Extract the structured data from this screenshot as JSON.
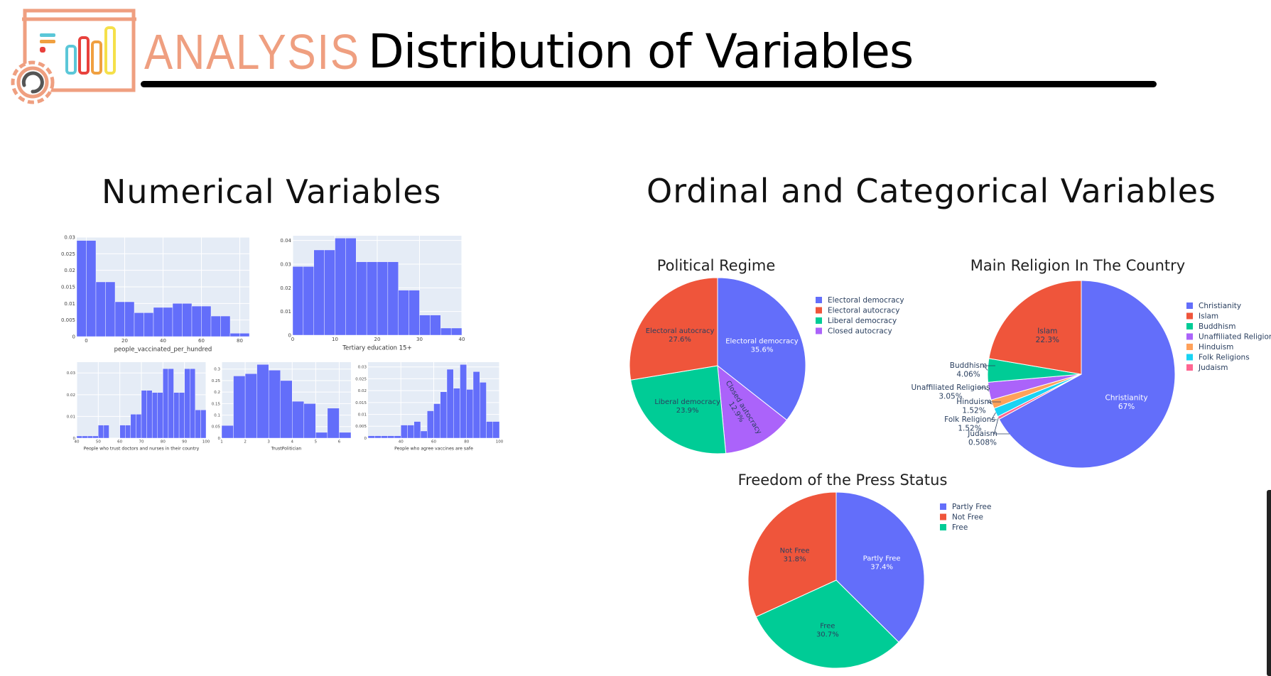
{
  "header": {
    "logo_word": "ANALYSIS",
    "title": "Distribution of Variables",
    "logo_colors": {
      "outline": "#ef9f80",
      "red": "#e8413c",
      "cyan": "#5bc7d8",
      "orange": "#f0a040",
      "yellow": "#f5e04a",
      "gear_inner": "#555555"
    }
  },
  "sections": {
    "numerical_title": "Numerical Variables",
    "categorical_title": "Ordinal and Categorical Variables"
  },
  "colors": {
    "bar": "#636efa",
    "plot_bg": "#e5ecf6",
    "pie": [
      "#636efa",
      "#ef553b",
      "#00cc96",
      "#ab63fa",
      "#ffa15a",
      "#19d3f3",
      "#ff6692"
    ]
  },
  "chart_data": [
    {
      "id": "hist1",
      "type": "bar",
      "title": "",
      "xlabel": "people_vaccinated_per_hundred",
      "ylabel": "",
      "xlim": [
        -5,
        85
      ],
      "ylim": [
        0,
        0.03
      ],
      "bin_width": 5,
      "bins_start": [
        -5,
        0,
        5,
        10,
        15,
        20,
        25,
        30,
        35,
        40,
        45,
        50,
        55,
        60,
        65,
        70,
        75,
        80
      ],
      "values": [
        0.029,
        0.029,
        0.0165,
        0.0165,
        0.0105,
        0.0105,
        0.0072,
        0.0072,
        0.0088,
        0.0088,
        0.01,
        0.01,
        0.0092,
        0.0092,
        0.0062,
        0.0062,
        0.001,
        0.001
      ],
      "xticks": [
        0,
        20,
        40,
        60,
        80
      ],
      "yticks": [
        0,
        0.005,
        0.01,
        0.015,
        0.02,
        0.025,
        0.03
      ]
    },
    {
      "id": "hist2",
      "type": "bar",
      "title": "",
      "xlabel": "Tertiary education 15+",
      "ylabel": "",
      "xlim": [
        0,
        40
      ],
      "ylim": [
        0,
        0.042
      ],
      "bin_width": 2.5,
      "bins_start": [
        0,
        2.5,
        5,
        7.5,
        10,
        12.5,
        15,
        17.5,
        20,
        22.5,
        25,
        27.5,
        30,
        32.5,
        35,
        37.5
      ],
      "values": [
        0.029,
        0.029,
        0.036,
        0.036,
        0.041,
        0.041,
        0.031,
        0.031,
        0.031,
        0.031,
        0.019,
        0.019,
        0.0085,
        0.0085,
        0.003,
        0.003
      ],
      "xticks": [
        0,
        10,
        20,
        30,
        40
      ],
      "yticks": [
        0,
        0.01,
        0.02,
        0.03,
        0.04
      ]
    },
    {
      "id": "hist3",
      "type": "bar",
      "title": "",
      "xlabel": "People who trust doctors and nurses in their country",
      "ylabel": "",
      "xlim": [
        40,
        100
      ],
      "ylim": [
        0,
        0.035
      ],
      "bin_width": 2.5,
      "bins_start": [
        40,
        42.5,
        45,
        47.5,
        50,
        52.5,
        55,
        57.5,
        60,
        62.5,
        65,
        67.5,
        70,
        72.5,
        75,
        77.5,
        80,
        82.5,
        85,
        87.5,
        90,
        92.5,
        95,
        97.5
      ],
      "values": [
        0.001,
        0.001,
        0.001,
        0.001,
        0.006,
        0.006,
        0,
        0,
        0.006,
        0.006,
        0.011,
        0.011,
        0.022,
        0.022,
        0.021,
        0.021,
        0.032,
        0.032,
        0.021,
        0.021,
        0.032,
        0.032,
        0.013,
        0.013
      ],
      "xticks": [
        40,
        50,
        60,
        70,
        80,
        90,
        100
      ],
      "yticks": [
        0,
        0.01,
        0.02,
        0.03
      ]
    },
    {
      "id": "hist4",
      "type": "bar",
      "title": "",
      "xlabel": "TrustPolitician",
      "ylabel": "",
      "xlim": [
        1,
        6.5
      ],
      "ylim": [
        0,
        0.33
      ],
      "bin_width": 0.5,
      "bins_start": [
        1,
        1.5,
        2,
        2.5,
        3,
        3.5,
        4,
        4.5,
        5,
        5.5,
        6
      ],
      "values": [
        0.055,
        0.27,
        0.28,
        0.32,
        0.295,
        0.25,
        0.16,
        0.15,
        0.025,
        0.13,
        0.025
      ],
      "xticks": [
        1,
        2,
        3,
        4,
        5,
        6
      ],
      "yticks": [
        0,
        0.05,
        0.1,
        0.15,
        0.2,
        0.25,
        0.3
      ]
    },
    {
      "id": "hist5",
      "type": "bar",
      "title": "",
      "xlabel": "People who agree vaccines are safe",
      "ylabel": "",
      "xlim": [
        20,
        100
      ],
      "ylim": [
        0,
        0.032
      ],
      "bin_width": 4,
      "bins_start": [
        20,
        24,
        28,
        32,
        36,
        40,
        44,
        48,
        52,
        56,
        60,
        64,
        68,
        72,
        76,
        80,
        84,
        88,
        92,
        96
      ],
      "values": [
        0.001,
        0.001,
        0.001,
        0.001,
        0.001,
        0.0055,
        0.0055,
        0.007,
        0.003,
        0.0115,
        0.0145,
        0.0195,
        0.029,
        0.021,
        0.031,
        0.0205,
        0.028,
        0.0235,
        0.007,
        0.007
      ],
      "xticks": [
        40,
        60,
        80,
        100
      ],
      "yticks": [
        0,
        0.005,
        0.01,
        0.015,
        0.02,
        0.025,
        0.03
      ]
    },
    {
      "id": "pie1",
      "type": "pie",
      "title": "Political Regime",
      "labels": [
        "Electoral democracy",
        "Electoral autocracy",
        "Liberal democracy",
        "Closed autocracy"
      ],
      "values": [
        35.6,
        27.6,
        23.9,
        12.9
      ],
      "slice_order_clockwise": [
        "Electoral democracy",
        "Closed autocracy",
        "Liberal democracy",
        "Electoral autocracy"
      ],
      "text": [
        "35.6%",
        "27.6%",
        "23.9%",
        "12.9%"
      ],
      "legend": "right"
    },
    {
      "id": "pie2",
      "type": "pie",
      "title": "Main Religion In The Country",
      "labels": [
        "Christianity",
        "Islam",
        "Buddhism",
        "Unaffiliated Religions",
        "Hinduism",
        "Folk Religions",
        "Judaism"
      ],
      "values": [
        67,
        22.3,
        4.06,
        3.05,
        1.52,
        1.52,
        0.508
      ],
      "slice_order_clockwise": [
        "Christianity",
        "Judaism",
        "Folk Religions",
        "Hinduism",
        "Unaffiliated Religions",
        "Buddhism",
        "Islam"
      ],
      "text": [
        "67%",
        "22.3%",
        "4.06%",
        "3.05%",
        "1.52%",
        "1.52%",
        "0.508%"
      ],
      "legend": "right"
    },
    {
      "id": "pie3",
      "type": "pie",
      "title": "Freedom of the Press Status",
      "labels": [
        "Partly Free",
        "Not Free",
        "Free"
      ],
      "values": [
        37.4,
        31.8,
        30.7
      ],
      "slice_order_clockwise": [
        "Partly Free",
        "Free",
        "Not Free"
      ],
      "text": [
        "37.4%",
        "31.8%",
        "30.7%"
      ],
      "legend": "right"
    }
  ]
}
